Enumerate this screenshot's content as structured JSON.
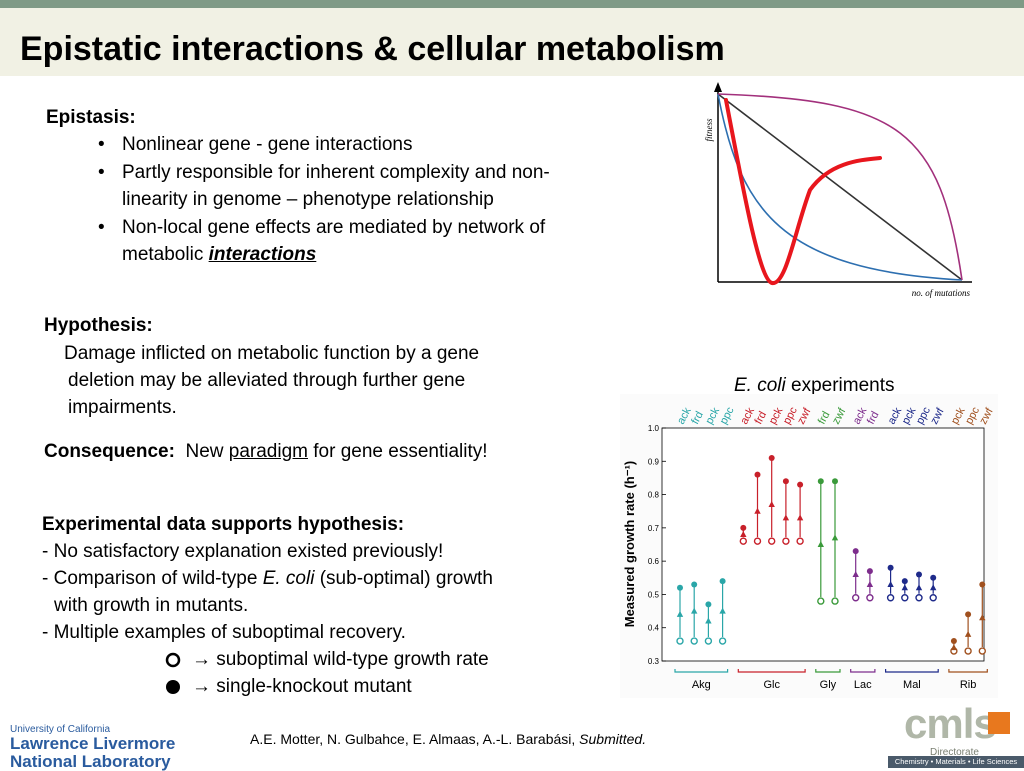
{
  "title": "Epistatic interactions & cellular metabolism",
  "epistasis": {
    "heading": "Epistasis:",
    "bullets": [
      "Nonlinear gene - gene interactions",
      "Partly responsible for inherent complexity and non-",
      "linearity in genome – phenotype relationship",
      "Non-local gene effects are mediated by network of",
      "metabolic ",
      "interactions"
    ]
  },
  "fitness_plot": {
    "ylabel": "fitness",
    "xlabel": "no. of mutations"
  },
  "hypothesis": {
    "heading": "Hypothesis:",
    "lines": [
      "Damage inflicted on metabolic function by a gene",
      "deletion may be alleviated through further gene",
      "impairments."
    ]
  },
  "consequence": {
    "heading": "Consequence:",
    "text_before": "New ",
    "underlined": "paradigm",
    "text_after": " for gene essentiality!"
  },
  "experimental": {
    "heading": "Experimental data supports hypothesis:",
    "lines": [
      "- No satisfactory explanation existed previously!",
      "- Comparison of wild-type ",
      "E. coli",
      " (sub-optimal) growth",
      "with growth in mutants.",
      "- Multiple examples of suboptimal recovery."
    ],
    "legend": [
      "→ suboptimal wild-type growth rate",
      "→ single-knockout mutant"
    ]
  },
  "ecoli_caption": {
    "italic": "E. coli",
    "rest": " experiments"
  },
  "chart_data": {
    "type": "scatter",
    "ylabel": "Measured growth rate (h⁻¹)",
    "ylim": [
      0.3,
      1.0
    ],
    "yticks": [
      "0.3",
      "0.4",
      "0.5",
      "0.6",
      "0.7",
      "0.8",
      "0.9",
      "1.0"
    ],
    "groups": [
      {
        "name": "Akg",
        "color": "#2aa6a8",
        "items": [
          {
            "label": "ack",
            "wt": 0.36,
            "mut": 0.52,
            "mid": 0.44
          },
          {
            "label": "frd",
            "wt": 0.36,
            "mut": 0.53,
            "mid": 0.45
          },
          {
            "label": "pck",
            "wt": 0.36,
            "mut": 0.47,
            "mid": 0.42
          },
          {
            "label": "ppc",
            "wt": 0.36,
            "mut": 0.54,
            "mid": 0.45
          }
        ]
      },
      {
        "name": "Glc",
        "color": "#c8202a",
        "items": [
          {
            "label": "ack",
            "wt": 0.66,
            "mut": 0.7,
            "mid": 0.68
          },
          {
            "label": "frd",
            "wt": 0.66,
            "mut": 0.86,
            "mid": 0.75
          },
          {
            "label": "pck",
            "wt": 0.66,
            "mut": 0.91,
            "mid": 0.77
          },
          {
            "label": "ppc",
            "wt": 0.66,
            "mut": 0.84,
            "mid": 0.73
          },
          {
            "label": "zwf",
            "wt": 0.66,
            "mut": 0.83,
            "mid": 0.73
          }
        ]
      },
      {
        "name": "Gly",
        "color": "#3a9a3a",
        "items": [
          {
            "label": "frd",
            "wt": 0.48,
            "mut": 0.84,
            "mid": 0.65
          },
          {
            "label": "zwf",
            "wt": 0.48,
            "mut": 0.84,
            "mid": 0.67
          }
        ]
      },
      {
        "name": "Lac",
        "color": "#7d2d8c",
        "items": [
          {
            "label": "ack",
            "wt": 0.49,
            "mut": 0.63,
            "mid": 0.56
          },
          {
            "label": "frd",
            "wt": 0.49,
            "mut": 0.57,
            "mid": 0.53
          }
        ]
      },
      {
        "name": "Mal",
        "color": "#1e2a8a",
        "items": [
          {
            "label": "ack",
            "wt": 0.49,
            "mut": 0.58,
            "mid": 0.53
          },
          {
            "label": "pck",
            "wt": 0.49,
            "mut": 0.54,
            "mid": 0.52
          },
          {
            "label": "ppc",
            "wt": 0.49,
            "mut": 0.56,
            "mid": 0.52
          },
          {
            "label": "zwf",
            "wt": 0.49,
            "mut": 0.55,
            "mid": 0.52
          }
        ]
      },
      {
        "name": "Rib",
        "color": "#a0501e",
        "items": [
          {
            "label": "pck",
            "wt": 0.33,
            "mut": 0.36,
            "mid": 0.34
          },
          {
            "label": "ppc",
            "wt": 0.33,
            "mut": 0.44,
            "mid": 0.38
          },
          {
            "label": "zwf",
            "wt": 0.33,
            "mut": 0.53,
            "mid": 0.43
          }
        ]
      }
    ]
  },
  "footer": {
    "citation_plain": "A.E. Motter, N. Gulbahce, E. Almaas, A.-L. Barabási, ",
    "citation_italic": "Submitted.",
    "llnl": [
      "University of California",
      "Lawrence Livermore",
      "National Laboratory"
    ],
    "cmls": [
      "cmls",
      "Directorate",
      "Chemistry • Materials • Life Sciences"
    ]
  },
  "colors": {
    "accent_bar": "#7f9a86",
    "title_bg": "#f1f1e4",
    "red_curve": "#e8161d",
    "blue_curve": "#2d6fb0",
    "purple_curve": "#a2307c"
  }
}
